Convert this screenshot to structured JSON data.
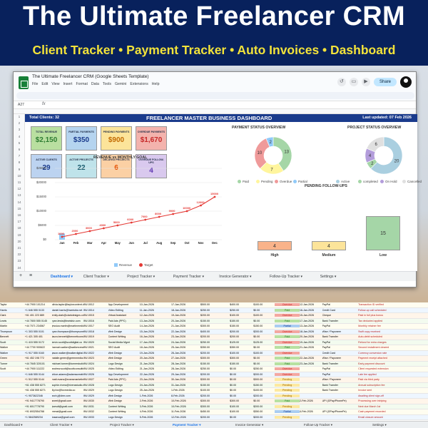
{
  "banner": {
    "title": "The Ultimate Freelancer CRM",
    "subtitle": "Client Tracker • Payment Tracker • Auto Invoices • Dashboard"
  },
  "sheets": {
    "doc_title": "The Ultimate Freelancer CRM (Google Sheets Template)",
    "menu": [
      "File",
      "Edit",
      "View",
      "Insert",
      "Format",
      "Data",
      "Tools",
      "Gemini",
      "Extensions",
      "Help"
    ],
    "share_label": "Share",
    "cell_ref": "A27",
    "fx": "fx"
  },
  "dashboard": {
    "total_clients": "Total Clients: 32",
    "title": "FREELANCER MASTER BUSINESS DASHBOARD",
    "last_updated": "Last updated: 07 Feb 2026",
    "kpis": [
      {
        "label": "TOTAL REVENUE",
        "value": "$2,150",
        "bg": "#b9dfa0",
        "color": "#2e7d32"
      },
      {
        "label": "PARTIAL PAYMENTS",
        "value": "$350",
        "bg": "#b5d4ef",
        "color": "#1a3b8c"
      },
      {
        "label": "PENDING PAYMENTS",
        "value": "$900",
        "bg": "#fce49a",
        "color": "#c26a00"
      },
      {
        "label": "OVERDUE PAYMENTS",
        "value": "$1,670",
        "bg": "#f3b3ad",
        "color": "#c62828"
      },
      {
        "label": "ACTIVE CLIENTS",
        "value": "29",
        "bg": "#bcd3f0",
        "color": "#1a3b8c"
      },
      {
        "label": "ACTIVE PROJECTS",
        "value": "22",
        "bg": "#bfe3ea",
        "color": "#1a5c6e"
      },
      {
        "label": "DELAYED PROJECTS",
        "value": "6",
        "bg": "#fbd0a4",
        "color": "#e65100"
      },
      {
        "label": "OVERDUE FOLLOW-UPS",
        "value": "4",
        "bg": "#d9c9ee",
        "color": "#5e35b1"
      }
    ],
    "revenue_title": "REVENUE vs MONTHLY GOAL",
    "payment_title": "PAYMENT STATUS OVERVIEW",
    "project_title": "PROJECT STATUS OVERVIEW",
    "followups_title": "PENDING FOLLOW-UPS",
    "payment_legend": [
      "Paid",
      "Pending",
      "Overdue",
      "Partial"
    ],
    "project_legend": [
      "Active",
      "completed",
      "On Hold",
      "Cancelled"
    ],
    "revenue_legend": [
      "Revenue",
      "Target"
    ],
    "colors": {
      "paid": "#a5d6a7",
      "pending": "#fff59d",
      "overdue": "#ef9a9a",
      "partial": "#90caf9",
      "active": "#aacfe0",
      "completed": "#a5d6a7",
      "onhold": "#b39ddb",
      "cancelled": "#e0e0e0",
      "header": "#1a3b8c",
      "target": "#e53935",
      "revenue": "#90caf9"
    }
  },
  "chart_data": [
    {
      "type": "line",
      "title": "REVENUE vs MONTHLY GOAL",
      "categories": [
        "Jan",
        "Feb",
        "Mar",
        "Apr",
        "May",
        "Jun",
        "Jul",
        "Aug",
        "Sep",
        "Oct",
        "Nov",
        "Dec"
      ],
      "series": [
        {
          "name": "Target",
          "values": [
            1000,
            2000,
            3000,
            4000,
            5000,
            6000,
            7000,
            8000,
            9000,
            10000,
            12000,
            15000
          ]
        },
        {
          "name": "Revenue",
          "values": [
            2150,
            0,
            0,
            0,
            0,
            0,
            0,
            0,
            0,
            0,
            0,
            0
          ]
        }
      ],
      "y_ticks": [
        "$25000",
        "$20000",
        "$15000",
        "$10000",
        "$5000",
        "$0"
      ],
      "ylim": [
        0,
        25000
      ]
    },
    {
      "type": "pie",
      "title": "PAYMENT STATUS OVERVIEW",
      "categories": [
        "Paid",
        "Pending",
        "Overdue",
        "Partial"
      ],
      "values": [
        13,
        7,
        10,
        2
      ]
    },
    {
      "type": "pie",
      "title": "PROJECT STATUS OVERVIEW",
      "categories": [
        "Active",
        "completed",
        "On Hold",
        "Cancelled"
      ],
      "values": [
        20,
        2,
        4,
        6
      ]
    },
    {
      "type": "bar",
      "title": "PENDING FOLLOW-UPS",
      "categories": [
        "High",
        "Medium",
        "Low"
      ],
      "values": [
        4,
        4,
        15
      ]
    }
  ],
  "tabs": [
    "Dashboard",
    "Client Tracker",
    "Project Tracker",
    "Payment Tracker",
    "Invoice Generator",
    "Follow-Up Tracker",
    "Settings"
  ],
  "active_tab": "Dashboard",
  "bottom_tabs": [
    "Dashboard",
    "Client Tracker",
    "Project Tracker",
    "Payment Tracker",
    "Invoice Generator",
    "Follow-Up Tracker",
    "Settings"
  ],
  "bottom_active": "Payment Tracker",
  "rows": [
    [
      "Taylor",
      "+44 7900 101214",
      "olivia.taylor@taylorcontent.com",
      "INV-0012",
      "App Development",
      "10-Jan-2026",
      "17-Jan-2026",
      "$500.00",
      "$400.00",
      "$100.00",
      "Overdue",
      "12-Jan-2026",
      "PayPal",
      "Transaction ID verified"
    ],
    [
      "Harris",
      "+1 646 555 0133",
      "daniel.harris@harrisbiz.net",
      "INV-0014",
      "Video Editing",
      "11-Jan-2026",
      "18-Jan-2026",
      "$250.00",
      "$250.00",
      "$0.00",
      "Paid",
      "16-Jan-2026",
      "Credit Card",
      "Follow-up call scheduled"
    ],
    [
      "Clark",
      "+61 401 223 889",
      "emily.clark@clarkdesigns.co",
      "INV-0015",
      "Virtual Assistant",
      "12-Jan-2026",
      "19-Jan-2026",
      "$200.00",
      "$100.00",
      "$100.00",
      "Overdue",
      "15-Jan-2026",
      "Cheque",
      "Paid in full plus bonus"
    ],
    [
      "Lewis",
      "+44 7800 555 0145",
      "ryan.lewis@lewisbiz.com",
      "INV-0016",
      "Paid Ads (PPC)",
      "13-Jan-2026",
      "20-Jan-2026",
      "$150.00",
      "$150.00",
      "$0.00",
      "Paid",
      "17-Jan-2026",
      "Bank Transfer",
      "Tax deducted applied"
    ],
    [
      "Martin",
      "+44 7071 234567",
      "jessica.martin@martinmedia.co",
      "INV-0017",
      "SEO Audit",
      "14-Jan-2026",
      "21-Jan-2026",
      "$300.00",
      "$150.00",
      "$150.00",
      "Partial",
      "13-Jan-2026",
      "PayPal",
      "Monthly retainer fee"
    ],
    [
      "Thompson",
      "+1 303 555 0101",
      "ryan.thompson@thompsonstudio.co",
      "INV-0018",
      "Web Design",
      "15-Jan-2026",
      "22-Jan-2026",
      "$400.00",
      "$200.00",
      "$200.00",
      "Overdue",
      "18-Jan-2026",
      "Wise / Payoneer",
      "Swift copy received"
    ],
    [
      "Bennett",
      "+1 421 305 401",
      "laura.bennett@bennettconsulting.com",
      "INV-0019",
      "Content Writing",
      "16-Jan-2026",
      "23-Jan-2026",
      "$200.00",
      "$200.00",
      "$0.00",
      "Paid",
      "20-Jan-2026",
      "Bank Transfer",
      "Auto-debit scheduled"
    ],
    [
      "Scott",
      "+1 415 555 0172",
      "kevin.scott@scottdigital.co",
      "INV-0020",
      "Social Media Mgmt",
      "17-Jan-2026",
      "24-Jan-2026",
      "$250.00",
      "$125.00",
      "$125.00",
      "Overdue",
      "19-Jan-2026",
      "PayPal",
      "Refund for extra charges"
    ],
    [
      "Walker",
      "+44 7700 900622",
      "hannah.walker@walkercreatives.co",
      "INV-0021",
      "SEO Audit",
      "18-Jan-2026",
      "25-Jan-2026",
      "$350.00",
      "$350.00",
      "$0.00",
      "Paid",
      "21-Jan-2026",
      "PayPal",
      "Second installment cleared"
    ],
    [
      "Walker",
      "+1 917 555 0160",
      "jason.walker@walkerdigital.net",
      "INV-0022",
      "Web Design",
      "19-Jan-2026",
      "26-Jan-2026",
      "$200.00",
      "$100.00",
      "$100.00",
      "Overdue",
      "",
      "Credit Card",
      "Currency conversion rate"
    ],
    [
      "Green",
      "+61 452 198 772",
      "natalie.green@greenmedia.co",
      "INV-0023",
      "Web Design",
      "20-Jan-2026",
      "27-Jan-2026",
      "$300.00",
      "$300.00",
      "$0.00",
      "Paid",
      "22-Jan-2026",
      "Wise / Payoneer",
      "Payment receipt attached"
    ],
    [
      "Turner",
      "+44 7845 320101",
      "michael.turner@turnerstudio.com",
      "INV-0024",
      "Logo Design",
      "21-Jan-2026",
      "28-Jan-2026",
      "$150.00",
      "$150.00",
      "$0.00",
      "Paid",
      "23-Jan-2026",
      "Bank Transfer",
      "Early payment discount"
    ],
    [
      "Scott",
      "+44 7900 111222",
      "andrew.scott@scottconsulting.biz",
      "INV-0025",
      "Video Editing",
      "21-Jan-2026",
      "28-Jan-2026",
      "$250.00",
      "$0.00",
      "$250.00",
      "Overdue",
      "",
      "PayPal",
      "Client requested extension"
    ],
    [
      "",
      "+1 646 555 0144",
      "chloe.adams@adamscreative.co",
      "INV-0026",
      "App Development",
      "22-Jan-2026",
      "29-Jan-2026",
      "$200.00",
      "$0.00",
      "$200.00",
      "Overdue",
      "",
      "PayPal",
      "Late fee applied"
    ],
    [
      "",
      "+1 512 555 0144",
      "matt.evans@evansmarketing.io",
      "INV-0027",
      "Paid Ads (PPC)",
      "23-Jan-2026",
      "30-Jan-2026",
      "$300.00",
      "$0.00",
      "$300.00",
      "Pending",
      "",
      "Wise / Payoneer",
      "Paid via third party"
    ],
    [
      "",
      "+61 438 555 8271",
      "sophie.rivera@riverastudio.com",
      "INV-0028",
      "Logo Design",
      "24-Jan-2026",
      "31-Jan-2026",
      "$150.00",
      "$0.00",
      "$150.00",
      "Pending",
      "",
      "Bank Transfer",
      "Annual subscription fee"
    ],
    [
      "",
      "+61 438 555 8271",
      "lily.fox@foxmedia.co",
      "INV-0029",
      "Logo Design",
      "25-Jan-2026",
      "1-Feb-2026",
      "$100.00",
      "$0.00",
      "$100.00",
      "Pending",
      "",
      "Bank Transfer",
      "Invoice sent"
    ],
    [
      "",
      "+1 9073622346",
      "arch.j@dmr.com",
      "INV-0029",
      "Web Design",
      "1-Feb-2026",
      "8-Feb-2026",
      "$200.00",
      "$0.00",
      "$200.00",
      "Pending",
      "",
      "",
      "Awaiting client sign-off"
    ],
    [
      "",
      "+91 9417778790",
      "sneel@gnail.com",
      "INV-0030",
      "Web Design",
      "2-Feb-2026",
      "10-Feb-2026",
      "$300.00",
      "$300.00",
      "$0.00",
      "Paid",
      "2-Feb-2026",
      "UPI (GPay/PhonePe)",
      "Processing over intriping"
    ],
    [
      "",
      "+91 6017778790",
      "jwesdt@gnail.com",
      "INV-0031",
      "Content Writing",
      "3-Feb-2026",
      "10-Feb-2026",
      "$300.00",
      "$100.00",
      "$200.00",
      "Pending",
      "",
      "",
      "Next due March 1st"
    ],
    [
      "",
      "+91 6932554788",
      "reerat@gnail.com",
      "INV-0032",
      "Content Writing",
      "4-Feb-2026",
      "11-Feb-2026",
      "$450.00",
      "$100.00",
      "$350.00",
      "Partial",
      "4-Feb-2026",
      "UPI (GPay/PhonePe)",
      "Cash payment recorded"
    ],
    [
      "",
      "+1 5842589234",
      "tosanoa@gnail.com",
      "INV-0033",
      "Logo Design",
      "5-Feb-2026",
      "12-Feb-2026",
      "$200.00",
      "$0.00",
      "$200.00",
      "Pending",
      "",
      "",
      "Email closure amount"
    ]
  ]
}
